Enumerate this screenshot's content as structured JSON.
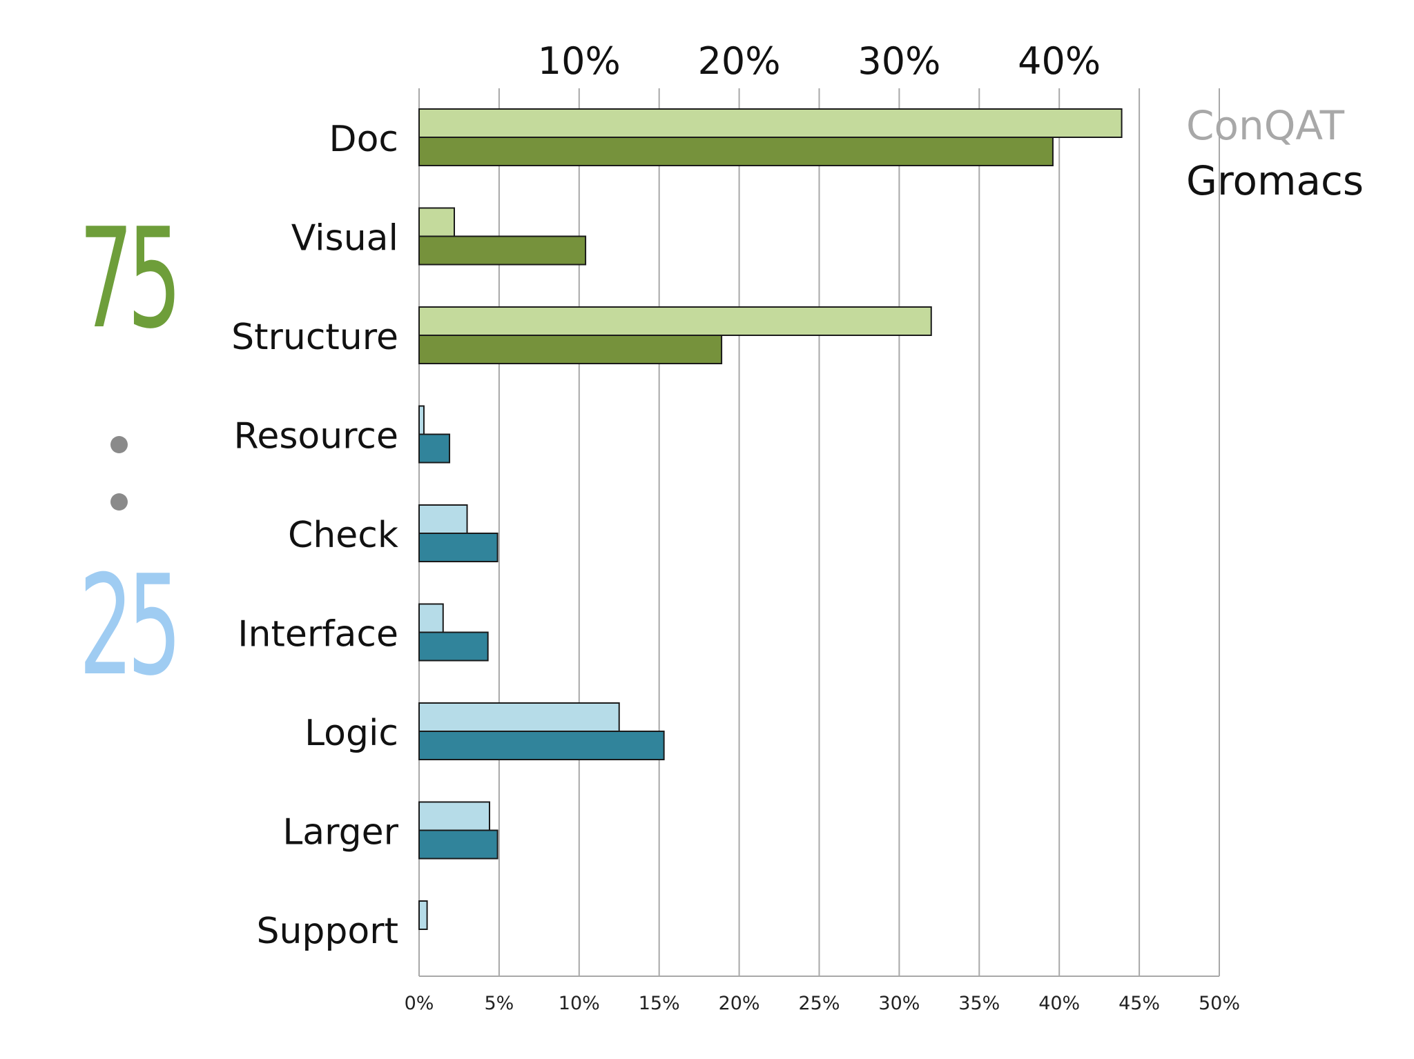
{
  "ratio": {
    "top": "75",
    "bottom": "25",
    "top_color": "#6e9e3a",
    "bottom_color": "#9fccf2"
  },
  "legend": {
    "conqat": {
      "label": "ConQAT",
      "color": "#a8a8a8"
    },
    "gromacs": {
      "label": "Gromacs",
      "color": "#111111"
    }
  },
  "chart_data": {
    "type": "bar",
    "orientation": "horizontal",
    "categories": [
      "Doc",
      "Visual",
      "Structure",
      "Resource",
      "Check",
      "Interface",
      "Logic",
      "Larger",
      "Support"
    ],
    "series": [
      {
        "name": "ConQAT",
        "values": [
          43.9,
          2.2,
          32.0,
          0.3,
          3.0,
          1.5,
          12.5,
          4.4,
          0.5
        ]
      },
      {
        "name": "Gromacs",
        "values": [
          39.6,
          10.4,
          18.9,
          1.9,
          4.9,
          4.3,
          15.3,
          4.9,
          0.0
        ]
      }
    ],
    "group_colors": {
      "green": {
        "categories": [
          "Doc",
          "Visual",
          "Structure"
        ],
        "light": "#c4da9c",
        "dark": "#76923c"
      },
      "blue": {
        "categories": [
          "Resource",
          "Check",
          "Interface",
          "Logic",
          "Larger",
          "Support"
        ],
        "light": "#b6dce8",
        "dark": "#31849b"
      }
    },
    "xlim": [
      0,
      50
    ],
    "bottom_ticks": [
      "0%",
      "5%",
      "10%",
      "15%",
      "20%",
      "25%",
      "30%",
      "35%",
      "40%",
      "45%",
      "50%"
    ],
    "top_ticks": [
      "10%",
      "20%",
      "30%",
      "40%"
    ],
    "grid": true,
    "legend_position": "right"
  }
}
